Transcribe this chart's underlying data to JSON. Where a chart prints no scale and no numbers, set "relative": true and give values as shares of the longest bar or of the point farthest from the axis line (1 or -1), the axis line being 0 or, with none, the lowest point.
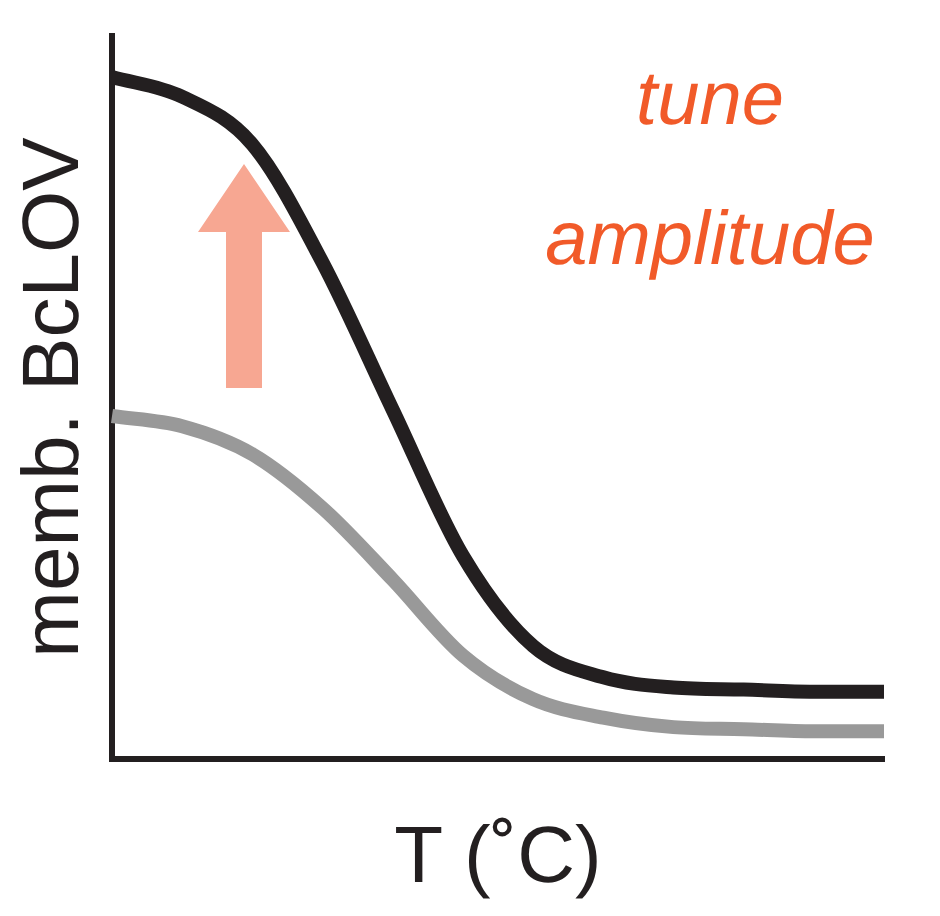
{
  "chart_data": {
    "type": "line",
    "relative": true,
    "xlabel": "T (˚C)",
    "ylabel": "memb. BcLOV",
    "grid": false,
    "legend": false,
    "marker": "none",
    "line_style": "solid",
    "categories": [
      null,
      null,
      null,
      null,
      null,
      null,
      null,
      null,
      null,
      null,
      null,
      null
    ],
    "series": [
      {
        "color": "#231f20",
        "values": [
          1,
          0.971,
          0.901,
          0.728,
          0.512,
          0.298,
          0.166,
          0.12,
          0.105,
          0.102,
          0.099,
          0.099
        ]
      },
      {
        "color": "#999999",
        "values": [
          0.503,
          0.488,
          0.447,
          0.368,
          0.263,
          0.152,
          0.088,
          0.061,
          0.047,
          0.044,
          0.041,
          0.041
        ]
      }
    ],
    "annotations": [
      "tune\namplitude"
    ]
  }
}
